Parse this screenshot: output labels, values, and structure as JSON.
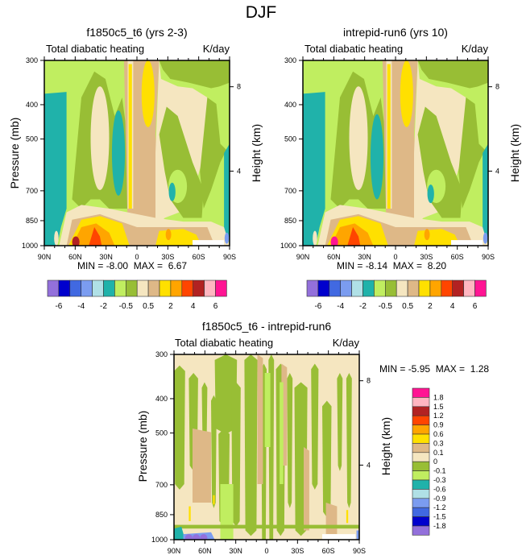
{
  "figure": {
    "title": "DJF"
  },
  "palette": {
    "full": [
      "#9370DB",
      "#0000CD",
      "#4169E1",
      "#7B9CF0",
      "#B0E0E6",
      "#20B2AA",
      "#C0EE60",
      "#98BE35",
      "#F5E6C0",
      "#DEB887",
      "#FFE000",
      "#FFA500",
      "#FF4500",
      "#B22222",
      "#FFB6C1",
      "#FF1493"
    ],
    "white_patch": "#FFFFFF"
  },
  "chart_data": [
    {
      "type": "heatmap",
      "id": "model1",
      "title": "f1850c5_t6 (yrs 2-3)",
      "left_subtitle": "Total diabatic heating",
      "right_subtitle": "K/day",
      "xlabel": "",
      "ylabel": "Pressure (mb)",
      "ylabel_right": "Height (km)",
      "x_ticks": [
        "90N",
        "60N",
        "30N",
        "0",
        "30S",
        "60S",
        "90S"
      ],
      "y_ticks": [
        "300",
        "400",
        "500",
        "700",
        "850",
        "1000"
      ],
      "y_ticks_right": [
        "8",
        "4"
      ],
      "xlim": [
        "90N",
        "90S"
      ],
      "ylim": [
        1000,
        300
      ],
      "min_label": "MIN =",
      "min_value": "-8.00",
      "max_label": "MAX =",
      "max_value": "6.67",
      "colorbar": {
        "orientation": "horizontal",
        "levels": [
          "-6",
          "-4",
          "-2",
          "-0.5",
          "0.5",
          "2",
          "4",
          "6"
        ],
        "n_colors": 16
      }
    },
    {
      "type": "heatmap",
      "id": "model2",
      "title": "intrepid-run6 (yrs 10)",
      "left_subtitle": "Total diabatic heating",
      "right_subtitle": "K/day",
      "xlabel": "",
      "ylabel": "Pressure (mb)",
      "ylabel_right": "Height (km)",
      "x_ticks": [
        "90N",
        "60N",
        "30N",
        "0",
        "30S",
        "60S",
        "90S"
      ],
      "y_ticks": [
        "300",
        "400",
        "500",
        "700",
        "850",
        "1000"
      ],
      "y_ticks_right": [
        "8",
        "4"
      ],
      "xlim": [
        "90N",
        "90S"
      ],
      "ylim": [
        1000,
        300
      ],
      "min_label": "MIN =",
      "min_value": "-8.14",
      "max_label": "MAX =",
      "max_value": "8.20",
      "colorbar": {
        "orientation": "horizontal",
        "levels": [
          "-6",
          "-4",
          "-2",
          "-0.5",
          "0.5",
          "2",
          "4",
          "6"
        ],
        "n_colors": 16
      }
    },
    {
      "type": "heatmap",
      "id": "difference",
      "title": "f1850c5_t6 - intrepid-run6",
      "left_subtitle": "Total diabatic heating",
      "right_subtitle": "K/day",
      "xlabel": "",
      "ylabel": "Pressure (mb)",
      "ylabel_right": "Height (km)",
      "x_ticks": [
        "90N",
        "60N",
        "30N",
        "0",
        "30S",
        "60S",
        "90S"
      ],
      "y_ticks": [
        "300",
        "400",
        "500",
        "700",
        "850",
        "1000"
      ],
      "y_ticks_right": [
        "8",
        "4"
      ],
      "xlim": [
        "90N",
        "90S"
      ],
      "ylim": [
        1000,
        300
      ],
      "min_label": "MIN =",
      "min_value": "-5.95",
      "max_label": "MAX =",
      "max_value": "1.28",
      "colorbar": {
        "orientation": "vertical",
        "levels": [
          "1.8",
          "1.5",
          "1.2",
          "0.9",
          "0.6",
          "0.3",
          "0.1",
          "0",
          "-0.1",
          "-0.3",
          "-0.6",
          "-0.9",
          "-1.2",
          "-1.5",
          "-1.8"
        ],
        "n_colors": 16
      }
    }
  ]
}
